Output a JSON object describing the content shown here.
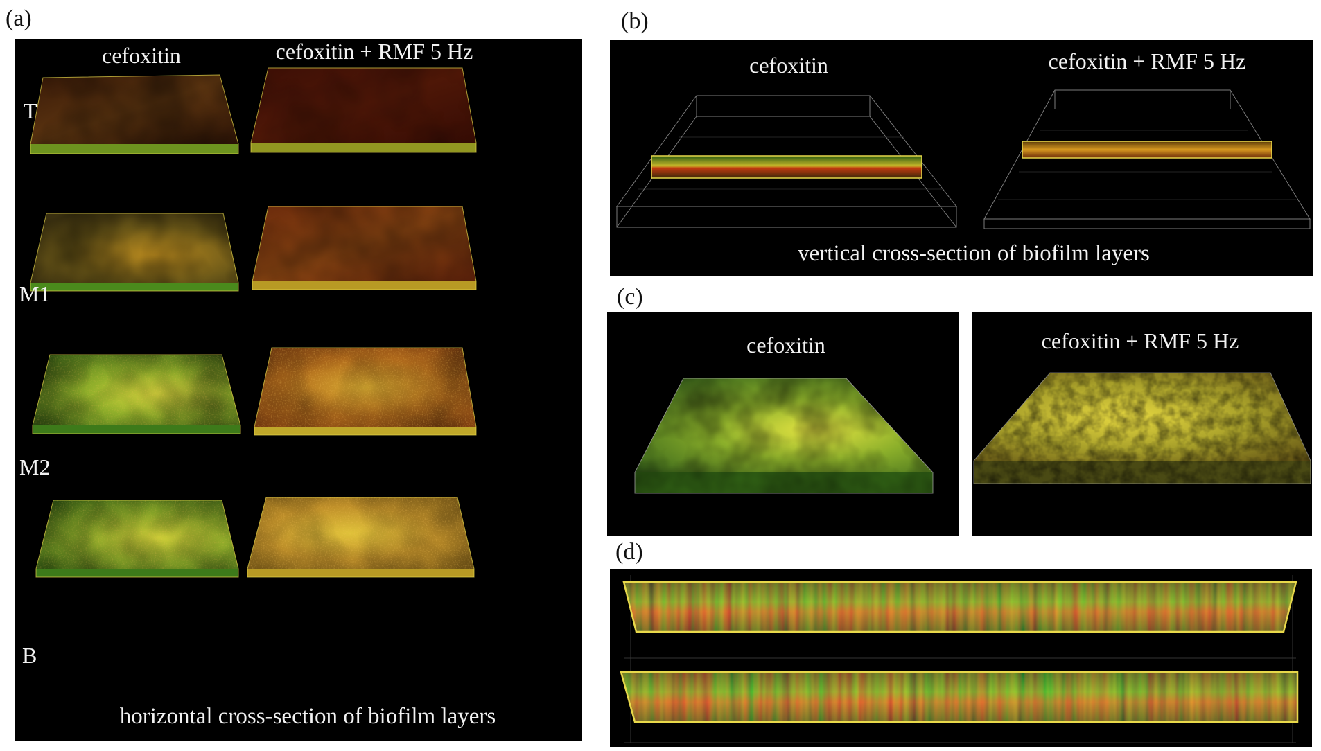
{
  "panels": {
    "a": {
      "letter": "(a)",
      "columns": [
        "cefoxitin",
        "cefoxitin + RMF 5 Hz"
      ],
      "rows": [
        "T",
        "M1",
        "M2",
        "B"
      ],
      "caption": "horizontal cross-section of biofilm layers"
    },
    "b": {
      "letter": "(b)",
      "columns": [
        "cefoxitin",
        "cefoxitin + RMF 5 Hz"
      ],
      "caption": "vertical cross-section of biofilm layers"
    },
    "c": {
      "letter": "(c)",
      "columns": [
        "cefoxitin",
        "cefoxitin + RMF 5 Hz"
      ]
    },
    "d": {
      "letter": "(d)"
    }
  },
  "colors": {
    "background": "#000000",
    "outline_yellow": "#e8d84a",
    "grid_gray": "#9a9a9a",
    "biofilm_green": "#4f8f1f",
    "biofilm_yellow": "#d9cf2e",
    "biofilm_red": "#b3320f",
    "biofilm_brown": "#5a2a10"
  }
}
